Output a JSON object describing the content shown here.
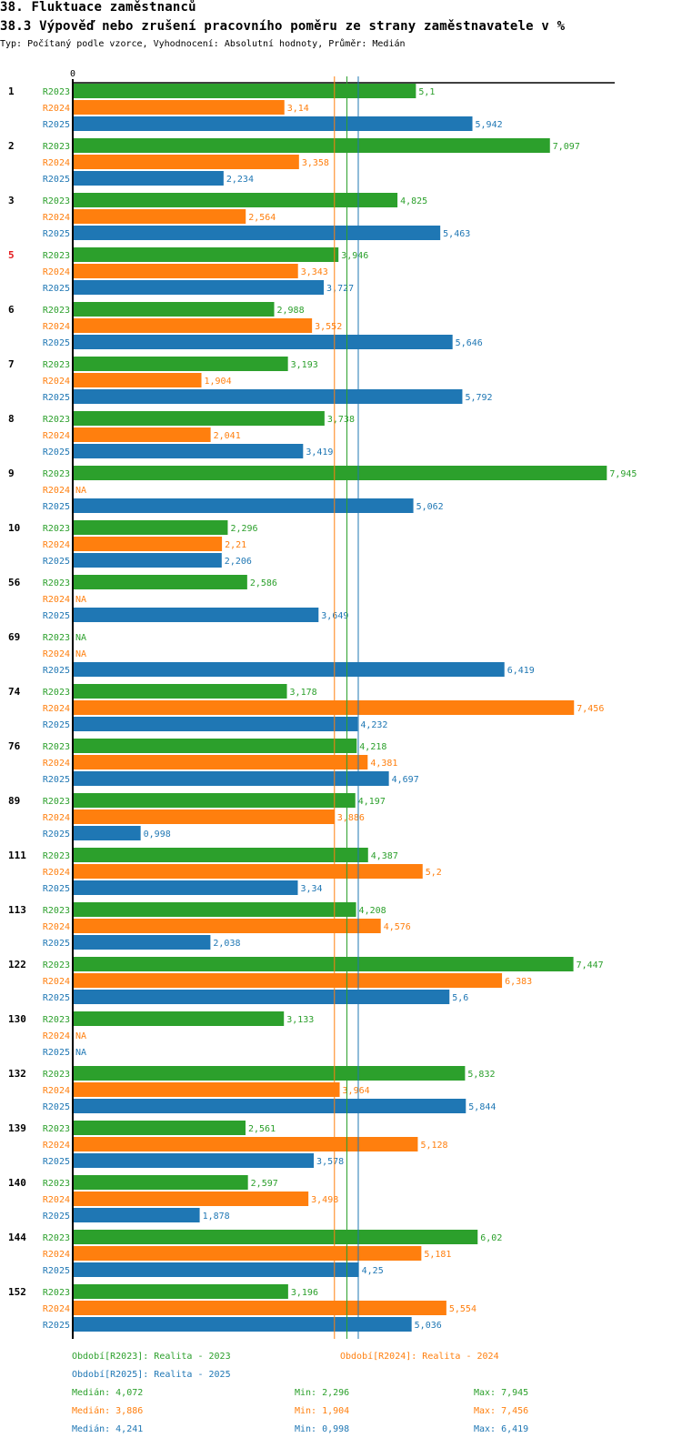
{
  "header": {
    "title": "38. Fluktuace zaměstnanců",
    "subtitle": "38.3 Výpověď nebo zrušení pracovního poměru ze strany zaměstnavatele v %",
    "info": "Typ: Počítaný podle vzorce, Vyhodnocení: Absolutní hodnoty, Průměr: Medián"
  },
  "colors": {
    "R2023": "#2ca02c",
    "R2024": "#ff7f0e",
    "R2025": "#1f77b4",
    "highlight_label": "#e41a1c"
  },
  "chart_data": {
    "type": "bar",
    "orientation": "horizontal",
    "title": "38.3 Výpověď nebo zrušení pracovního poměru ze strany zaměstnavatele v %",
    "xlabel": "",
    "ylabel": "",
    "x_tick_labels": [
      "0"
    ],
    "xlim": [
      0,
      8
    ],
    "grid": false,
    "na_label": "NA",
    "highlighted_category": "5",
    "categories": [
      "1",
      "2",
      "3",
      "5",
      "6",
      "7",
      "8",
      "9",
      "10",
      "56",
      "69",
      "74",
      "76",
      "89",
      "111",
      "113",
      "122",
      "130",
      "132",
      "139",
      "140",
      "144",
      "152"
    ],
    "series": [
      {
        "name": "R2023",
        "label": "Realita - 2023",
        "values": [
          5.1,
          7.097,
          4.825,
          3.946,
          2.988,
          3.193,
          3.738,
          7.945,
          2.296,
          2.586,
          null,
          3.178,
          4.218,
          4.197,
          4.387,
          4.208,
          7.447,
          3.133,
          5.832,
          2.561,
          2.597,
          6.02,
          3.196
        ],
        "display": [
          "5,1",
          "7,097",
          "4,825",
          "3,946",
          "2,988",
          "3,193",
          "3,738",
          "7,945",
          "2,296",
          "2,586",
          "NA",
          "3,178",
          "4,218",
          "4,197",
          "4,387",
          "4,208",
          "7,447",
          "3,133",
          "5,832",
          "2,561",
          "2,597",
          "6,02",
          "3,196"
        ],
        "median": 4.072,
        "median_text": "Medián: 4,072",
        "min_text": "Min: 2,296",
        "max_text": "Max: 7,945"
      },
      {
        "name": "R2024",
        "label": "Realita - 2024",
        "values": [
          3.14,
          3.358,
          2.564,
          3.343,
          3.552,
          1.904,
          2.041,
          null,
          2.21,
          null,
          null,
          7.456,
          4.381,
          3.886,
          5.2,
          4.576,
          6.383,
          null,
          3.964,
          5.128,
          3.498,
          5.181,
          5.554
        ],
        "display": [
          "3,14",
          "3,358",
          "2,564",
          "3,343",
          "3,552",
          "1,904",
          "2,041",
          "NA",
          "2,21",
          "NA",
          "NA",
          "7,456",
          "4,381",
          "3,886",
          "5,2",
          "4,576",
          "6,383",
          "NA",
          "3,964",
          "5,128",
          "3,498",
          "5,181",
          "5,554"
        ],
        "median": 3.886,
        "median_text": "Medián: 3,886",
        "min_text": "Min: 1,904",
        "max_text": "Max: 7,456"
      },
      {
        "name": "R2025",
        "label": "Realita - 2025",
        "values": [
          5.942,
          2.234,
          5.463,
          3.727,
          5.646,
          5.792,
          3.419,
          5.062,
          2.206,
          3.649,
          6.419,
          4.232,
          4.697,
          0.998,
          3.34,
          2.038,
          5.6,
          null,
          5.844,
          3.578,
          1.878,
          4.25,
          5.036
        ],
        "display": [
          "5,942",
          "2,234",
          "5,463",
          "3,727",
          "5,646",
          "5,792",
          "3,419",
          "5,062",
          "2,206",
          "3,649",
          "6,419",
          "4,232",
          "4,697",
          "0,998",
          "3,34",
          "2,038",
          "5,6",
          "NA",
          "5,844",
          "3,578",
          "1,878",
          "4,25",
          "5,036"
        ],
        "median": 4.241,
        "median_text": "Medián: 4,241",
        "min_text": "Min: 0,998",
        "max_text": "Max: 6,419"
      }
    ],
    "legend": {
      "placement": "bottom",
      "entries": [
        {
          "series": "R2023",
          "text": "Období[R2023]: Realita - 2023"
        },
        {
          "series": "R2024",
          "text": "Období[R2024]: Realita - 2024"
        },
        {
          "series": "R2025",
          "text": "Období[R2025]: Realita - 2025"
        }
      ]
    }
  }
}
